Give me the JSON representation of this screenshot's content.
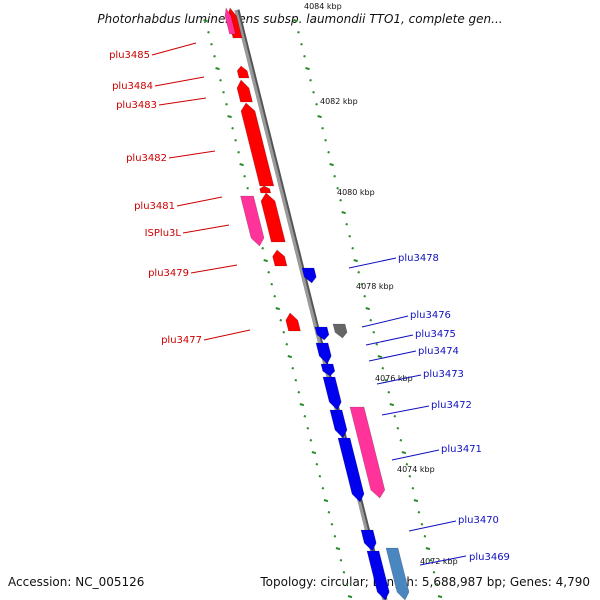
{
  "header": {
    "title": "Photorhabdus luminescens subsp. laumondii TTO1, complete gen..."
  },
  "footer": {
    "accession": "Accession: NC_005126",
    "topology": "Topology: circular; Length: 5,688,987 bp; Genes: 4,790"
  },
  "colors": {
    "forward_gene": "#ff0000",
    "reverse_gene": "#0000ee",
    "insertion_element": "#ff3399",
    "tick_mark": "#2a8a2a",
    "backbone": "#8a8a8a",
    "grey_gene": "#666666",
    "steelblue_gene": "#4a86c0"
  },
  "scale_labels": [
    "4084 kbp",
    "4082 kbp",
    "4080 kbp",
    "4078 kbp",
    "4076 kbp",
    "4074 kbp",
    "4072 kbp"
  ],
  "genes_forward_strand": [
    {
      "label": "plu3485",
      "color": "forward_gene"
    },
    {
      "label": "plu3484",
      "color": "forward_gene"
    },
    {
      "label": "plu3483",
      "color": "forward_gene"
    },
    {
      "label": "plu3482",
      "color": "forward_gene"
    },
    {
      "label": "plu3481",
      "color": "forward_gene"
    },
    {
      "label": "ISPlu3L",
      "color": "insertion_element"
    },
    {
      "label": "plu3479",
      "color": "forward_gene"
    },
    {
      "label": "plu3477",
      "color": "forward_gene"
    }
  ],
  "genes_reverse_strand": [
    {
      "label": "plu3478",
      "color": "reverse_gene"
    },
    {
      "label": "plu3476",
      "color": "grey_gene"
    },
    {
      "label": "plu3475",
      "color": "reverse_gene"
    },
    {
      "label": "plu3474",
      "color": "reverse_gene"
    },
    {
      "label": "plu3473",
      "color": "reverse_gene"
    },
    {
      "label": "plu3472",
      "color": "insertion_element"
    },
    {
      "label": "plu3471",
      "color": "reverse_gene"
    },
    {
      "label": "plu3470",
      "color": "reverse_gene"
    },
    {
      "label": "plu3469",
      "color": "steelblue_gene"
    }
  ]
}
